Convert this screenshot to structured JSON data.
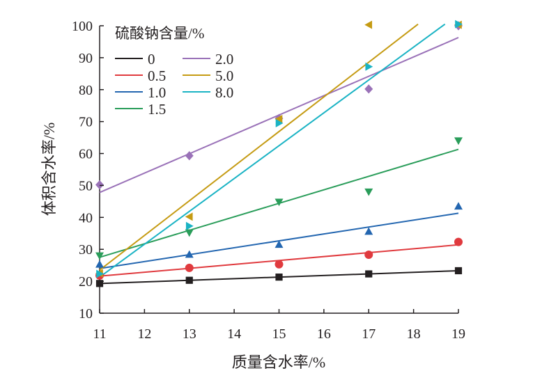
{
  "chart_data": {
    "type": "scatter",
    "xlabel": "质量含水率/%",
    "ylabel": "体积含水率/%",
    "xlim": [
      11,
      19
    ],
    "ylim": [
      10,
      100
    ],
    "xticks": [
      "11",
      "12",
      "13",
      "14",
      "15",
      "16",
      "17",
      "18",
      "19"
    ],
    "yticks": [
      "10",
      "20",
      "30",
      "40",
      "50",
      "60",
      "70",
      "80",
      "90",
      "100"
    ],
    "grid": false,
    "legend": {
      "title": "硫酸钠含量/%",
      "placement": "top-left",
      "columns": 2
    },
    "series": [
      {
        "name": "0",
        "color": "#231f20",
        "marker": "square",
        "x": [
          11,
          13,
          15,
          17,
          19
        ],
        "y": [
          19.3,
          20.3,
          21.3,
          22.3,
          23.3
        ],
        "fit": [
          [
            11,
            19.3
          ],
          [
            19,
            23.3
          ]
        ]
      },
      {
        "name": "0.5",
        "color": "#e03a3e",
        "marker": "circle",
        "x": [
          11,
          13,
          15,
          17,
          19
        ],
        "y": [
          21.8,
          24.2,
          25.3,
          28.3,
          32.3
        ],
        "fit": [
          [
            11,
            21.6
          ],
          [
            19,
            31.4
          ]
        ]
      },
      {
        "name": "1.0",
        "color": "#2366b0",
        "marker": "triangle-up",
        "x": [
          11,
          13,
          15,
          17,
          19
        ],
        "y": [
          25.3,
          28.4,
          31.5,
          35.6,
          43.5
        ],
        "fit": [
          [
            11,
            24.0
          ],
          [
            19,
            41.3
          ]
        ]
      },
      {
        "name": "1.5",
        "color": "#2a9d5a",
        "marker": "triangle-down",
        "x": [
          11,
          13,
          15,
          17,
          19
        ],
        "y": [
          28.0,
          35.2,
          44.8,
          48.0,
          64.0
        ],
        "fit": [
          [
            11,
            27.5
          ],
          [
            19,
            61.3
          ]
        ]
      },
      {
        "name": "2.0",
        "color": "#9a72b8",
        "marker": "diamond",
        "x": [
          11,
          13,
          15,
          17,
          19
        ],
        "y": [
          50.2,
          59.3,
          71.0,
          80.2,
          100.0
        ],
        "fit": [
          [
            11,
            47.8
          ],
          [
            19,
            96.3
          ]
        ]
      },
      {
        "name": "5.0",
        "color": "#c59b13",
        "marker": "triangle-left",
        "x": [
          11,
          13,
          15,
          17,
          19
        ],
        "y": [
          22.5,
          40.2,
          70.8,
          100.3,
          100.3
        ],
        "fit": [
          [
            11,
            23.5
          ],
          [
            18.1,
            100.5
          ]
        ]
      },
      {
        "name": "8.0",
        "color": "#1ab3c4",
        "marker": "triangle-right",
        "x": [
          11,
          13,
          15,
          17,
          19
        ],
        "y": [
          22.3,
          37.3,
          69.5,
          87.2,
          100.5
        ],
        "fit": [
          [
            11,
            21.3
          ],
          [
            18.7,
            100.5
          ]
        ]
      }
    ]
  }
}
